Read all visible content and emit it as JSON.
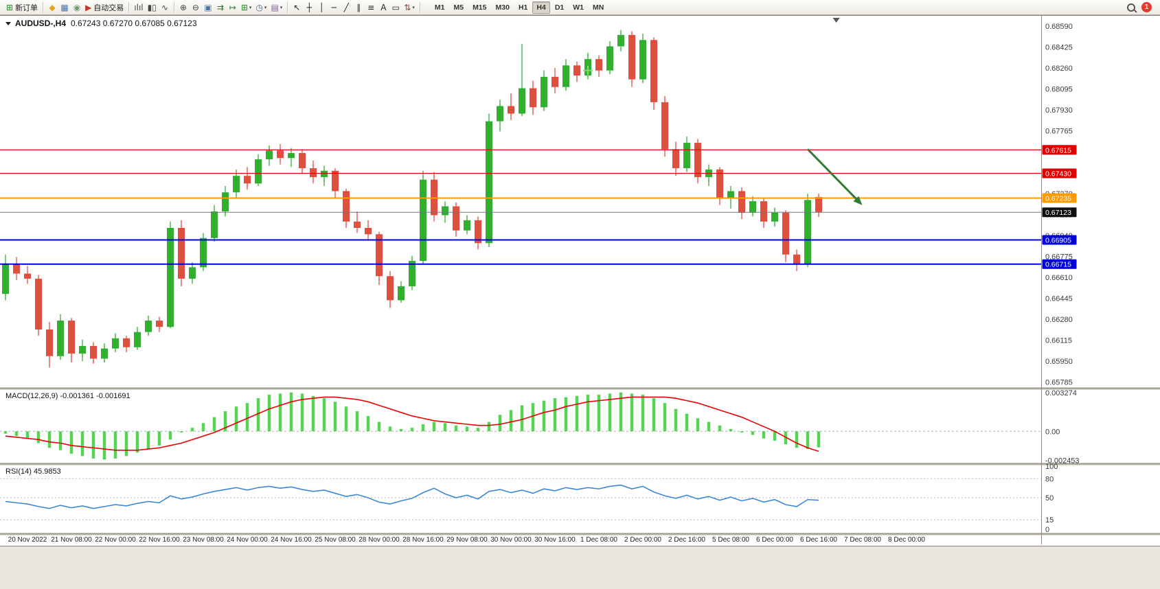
{
  "toolbar": {
    "items": [
      {
        "type": "button",
        "name": "new-order",
        "glyph": "⊞",
        "color": "#1f8f1f",
        "label": "新订单"
      },
      {
        "type": "separator"
      },
      {
        "type": "button",
        "name": "community",
        "glyph": "◆",
        "color": "#e2a41f"
      },
      {
        "type": "button",
        "name": "charts-window",
        "glyph": "▦",
        "color": "#4a74a8"
      },
      {
        "type": "button",
        "name": "market",
        "glyph": "◉",
        "color": "#6f9a6f"
      },
      {
        "type": "button",
        "name": "auto-trading",
        "glyph": "▶",
        "color": "#c03a2c",
        "label": "自动交易"
      },
      {
        "type": "separator"
      },
      {
        "type": "button",
        "name": "bar-chart",
        "glyph": "ılıl",
        "color": "#444444"
      },
      {
        "type": "button",
        "name": "candlestick-chart",
        "glyph": "▮▯",
        "color": "#444444"
      },
      {
        "type": "button",
        "name": "line-chart",
        "glyph": "∿",
        "color": "#444444"
      },
      {
        "type": "separator"
      },
      {
        "type": "button",
        "name": "zoom-in",
        "glyph": "⊕",
        "color": "#444444"
      },
      {
        "type": "button",
        "name": "zoom-out",
        "glyph": "⊖",
        "color": "#444444"
      },
      {
        "type": "button",
        "name": "tile-windows",
        "glyph": "▣",
        "color": "#4a74a8"
      },
      {
        "type": "button",
        "name": "auto-scroll",
        "glyph": "⇉",
        "color": "#2d6e2d"
      },
      {
        "type": "button",
        "name": "chart-shift",
        "glyph": "↦",
        "color": "#2d6e2d"
      },
      {
        "type": "button",
        "name": "indicators",
        "glyph": "⊞",
        "color": "#1f8f1f",
        "caret": true
      },
      {
        "type": "button",
        "name": "periods",
        "glyph": "◷",
        "color": "#3a6ea5",
        "caret": true
      },
      {
        "type": "button",
        "name": "templates",
        "glyph": "▤",
        "color": "#7a5ea5",
        "caret": true
      },
      {
        "type": "separator"
      },
      {
        "type": "button",
        "name": "cursor",
        "glyph": "↖",
        "color": "#222222"
      },
      {
        "type": "button",
        "name": "crosshair",
        "glyph": "┼",
        "color": "#222222"
      },
      {
        "type": "button",
        "name": "vertical-line",
        "glyph": "│",
        "color": "#222222"
      },
      {
        "type": "button",
        "name": "horizontal-line",
        "glyph": "─",
        "color": "#222222"
      },
      {
        "type": "button",
        "name": "trendline",
        "glyph": "╱",
        "color": "#222222"
      },
      {
        "type": "button",
        "name": "equidistant-channel",
        "glyph": "∥",
        "color": "#222222"
      },
      {
        "type": "button",
        "name": "fibonacci",
        "glyph": "≡",
        "color": "#222222"
      },
      {
        "type": "button",
        "name": "text",
        "glyph": "A",
        "color": "#222222"
      },
      {
        "type": "button",
        "name": "text-label",
        "glyph": "▭",
        "color": "#222222"
      },
      {
        "type": "button",
        "name": "arrows",
        "glyph": "⇅",
        "color": "#a03a3a",
        "caret": true
      },
      {
        "type": "separator"
      }
    ],
    "timeframes": [
      "M1",
      "M5",
      "M15",
      "M30",
      "H1",
      "H4",
      "D1",
      "W1",
      "MN"
    ],
    "active_timeframe": "H4",
    "notification_count": "1"
  },
  "chart": {
    "symbol_period": "AUDUSD-,H4",
    "ohlc_text": "0.67243 0.67270 0.67085 0.67123"
  },
  "chart_data": {
    "type": "candlestick",
    "symbol": "AUDUSD-",
    "timeframe": "H4",
    "current_bar": {
      "open": 0.67243,
      "high": 0.6727,
      "low": 0.67085,
      "close": 0.67123
    },
    "price_axis": {
      "visible_range": [
        0.6574,
        0.6866
      ],
      "ticks": [
        0.6859,
        0.68425,
        0.6826,
        0.68095,
        0.6793,
        0.67765,
        0.676,
        0.67435,
        0.6727,
        0.67105,
        0.6694,
        0.66775,
        0.6661,
        0.66445,
        0.6628,
        0.66115,
        0.6595,
        0.65785
      ]
    },
    "candles": [
      [
        0.6648,
        0.6679,
        0.6643,
        0.6672
      ],
      [
        0.6672,
        0.6677,
        0.6659,
        0.6664
      ],
      [
        0.6664,
        0.667,
        0.6656,
        0.666
      ],
      [
        0.666,
        0.6663,
        0.6615,
        0.662
      ],
      [
        0.662,
        0.6626,
        0.659,
        0.6599
      ],
      [
        0.6599,
        0.6632,
        0.6596,
        0.6627
      ],
      [
        0.6627,
        0.6629,
        0.6594,
        0.6601
      ],
      [
        0.6601,
        0.6612,
        0.6595,
        0.6607
      ],
      [
        0.6607,
        0.661,
        0.6593,
        0.6597
      ],
      [
        0.6597,
        0.6609,
        0.6594,
        0.6605
      ],
      [
        0.6605,
        0.6617,
        0.6602,
        0.6613
      ],
      [
        0.6613,
        0.6615,
        0.6602,
        0.6606
      ],
      [
        0.6606,
        0.6622,
        0.6604,
        0.6618
      ],
      [
        0.6618,
        0.6631,
        0.6615,
        0.6627
      ],
      [
        0.6627,
        0.663,
        0.6618,
        0.6622
      ],
      [
        0.6622,
        0.6705,
        0.6621,
        0.67
      ],
      [
        0.67,
        0.6706,
        0.6654,
        0.666
      ],
      [
        0.666,
        0.6673,
        0.6656,
        0.6669
      ],
      [
        0.6669,
        0.6696,
        0.6666,
        0.6692
      ],
      [
        0.6692,
        0.6718,
        0.6689,
        0.6713
      ],
      [
        0.6713,
        0.6733,
        0.6709,
        0.6728
      ],
      [
        0.6728,
        0.6746,
        0.6724,
        0.6741
      ],
      [
        0.6741,
        0.6748,
        0.673,
        0.6735
      ],
      [
        0.6735,
        0.6758,
        0.6733,
        0.6754
      ],
      [
        0.6754,
        0.6765,
        0.6749,
        0.6761
      ],
      [
        0.6761,
        0.6766,
        0.675,
        0.6755
      ],
      [
        0.6755,
        0.6763,
        0.6748,
        0.6759
      ],
      [
        0.6759,
        0.6762,
        0.6743,
        0.6747
      ],
      [
        0.6747,
        0.6753,
        0.6735,
        0.674
      ],
      [
        0.674,
        0.6749,
        0.6733,
        0.6745
      ],
      [
        0.6745,
        0.6747,
        0.6724,
        0.6729
      ],
      [
        0.6729,
        0.6731,
        0.67,
        0.6705
      ],
      [
        0.6705,
        0.6713,
        0.6696,
        0.67
      ],
      [
        0.67,
        0.6706,
        0.669,
        0.6695
      ],
      [
        0.6695,
        0.6697,
        0.6655,
        0.6662
      ],
      [
        0.6662,
        0.6666,
        0.6637,
        0.6643
      ],
      [
        0.6643,
        0.6658,
        0.6641,
        0.6654
      ],
      [
        0.6654,
        0.6678,
        0.6651,
        0.6674
      ],
      [
        0.6674,
        0.6745,
        0.6671,
        0.6738
      ],
      [
        0.6738,
        0.6744,
        0.6705,
        0.671
      ],
      [
        0.671,
        0.6721,
        0.6704,
        0.6717
      ],
      [
        0.6717,
        0.672,
        0.6693,
        0.6698
      ],
      [
        0.6698,
        0.671,
        0.6695,
        0.6706
      ],
      [
        0.6706,
        0.6709,
        0.6683,
        0.6688
      ],
      [
        0.6688,
        0.679,
        0.6685,
        0.6784
      ],
      [
        0.6784,
        0.6801,
        0.6776,
        0.6796
      ],
      [
        0.6796,
        0.6806,
        0.6785,
        0.679
      ],
      [
        0.679,
        0.6845,
        0.6788,
        0.681
      ],
      [
        0.681,
        0.6816,
        0.6789,
        0.6795
      ],
      [
        0.6795,
        0.6824,
        0.6792,
        0.6819
      ],
      [
        0.6819,
        0.6826,
        0.6806,
        0.6811
      ],
      [
        0.6811,
        0.6833,
        0.6808,
        0.6828
      ],
      [
        0.6828,
        0.6831,
        0.6815,
        0.682
      ],
      [
        0.682,
        0.6838,
        0.6817,
        0.6833
      ],
      [
        0.6833,
        0.6836,
        0.6819,
        0.6824
      ],
      [
        0.6824,
        0.6847,
        0.6821,
        0.6843
      ],
      [
        0.6843,
        0.6856,
        0.6839,
        0.6852
      ],
      [
        0.6852,
        0.6855,
        0.6811,
        0.6817
      ],
      [
        0.6817,
        0.6853,
        0.6814,
        0.6848
      ],
      [
        0.6848,
        0.685,
        0.6793,
        0.6799
      ],
      [
        0.6799,
        0.6804,
        0.6756,
        0.6762
      ],
      [
        0.6762,
        0.6768,
        0.6741,
        0.6747
      ],
      [
        0.6747,
        0.6772,
        0.6744,
        0.6767
      ],
      [
        0.6767,
        0.677,
        0.6735,
        0.674
      ],
      [
        0.674,
        0.675,
        0.6733,
        0.6746
      ],
      [
        0.6746,
        0.6748,
        0.6718,
        0.6723
      ],
      [
        0.6723,
        0.6733,
        0.6715,
        0.6729
      ],
      [
        0.6729,
        0.6732,
        0.6707,
        0.6712
      ],
      [
        0.6712,
        0.6725,
        0.6709,
        0.6721
      ],
      [
        0.6721,
        0.6724,
        0.67,
        0.6705
      ],
      [
        0.6705,
        0.6716,
        0.6701,
        0.6712
      ],
      [
        0.6712,
        0.6714,
        0.6673,
        0.6679
      ],
      [
        0.6679,
        0.6683,
        0.6666,
        0.6671
      ],
      [
        0.6671,
        0.6727,
        0.6669,
        0.6722
      ],
      [
        0.67243,
        0.6727,
        0.67085,
        0.67123
      ]
    ],
    "hlines": [
      {
        "price": 0.67615,
        "label": "0.67615",
        "color": "#e00000",
        "width": 1.2
      },
      {
        "price": 0.6743,
        "label": "0.67430",
        "color": "#e00000",
        "width": 1.2
      },
      {
        "price": 0.67235,
        "label": "0.67235",
        "color": "#ff9900",
        "width": 2
      },
      {
        "price": 0.66905,
        "label": "0.66905",
        "color": "#0000d8",
        "width": 2
      },
      {
        "price": 0.66715,
        "label": "0.66715",
        "color": "#0000d8",
        "width": 2
      }
    ],
    "current_price": {
      "value": 0.67123,
      "label": "0.67123",
      "line_color": "#777777",
      "badge_color": "#111111"
    },
    "annotations": {
      "arrow": {
        "from": {
          "bar": 73,
          "price": 0.6762
        },
        "to": {
          "bar": 77.4,
          "price": 0.6723
        }
      },
      "cross": {
        "bar": 53,
        "price": 0.6824
      },
      "shift_marker_bar": 75.6
    },
    "indicators": {
      "macd": {
        "header": "MACD(12,26,9) -0.001361 -0.001691",
        "params": "12,26,9",
        "value_main": "-0.001361",
        "value_signal": "-0.001691",
        "axis_ticks": [
          {
            "v": 0.003274,
            "label": "0.003274"
          },
          {
            "v": 0,
            "label": "0.00"
          },
          {
            "v": -0.002453,
            "label": "-0.002453"
          }
        ],
        "hist": [
          -0.0002,
          -0.0004,
          -0.0006,
          -0.001,
          -0.0014,
          -0.0016,
          -0.0019,
          -0.0021,
          -0.0023,
          -0.0024,
          -0.0023,
          -0.0021,
          -0.0018,
          -0.0015,
          -0.0012,
          -0.0007,
          -0.0001,
          0.0003,
          0.0007,
          0.0012,
          0.0017,
          0.0021,
          0.0024,
          0.0028,
          0.0031,
          0.0032,
          0.0033,
          0.0032,
          0.003,
          0.0028,
          0.0025,
          0.0021,
          0.0017,
          0.0013,
          0.0008,
          0.0004,
          0.0002,
          0.0003,
          0.0006,
          0.0008,
          0.0007,
          0.0005,
          0.0004,
          0.0003,
          0.0008,
          0.0014,
          0.0018,
          0.0022,
          0.0024,
          0.0026,
          0.0028,
          0.0029,
          0.003,
          0.0031,
          0.0031,
          0.0032,
          0.0033,
          0.0032,
          0.0031,
          0.0028,
          0.0024,
          0.0019,
          0.0015,
          0.0011,
          0.0008,
          0.0005,
          0.0002,
          -0.0001,
          -0.0003,
          -0.0006,
          -0.0008,
          -0.0011,
          -0.0014,
          -0.0015,
          -0.001361
        ],
        "signal": [
          -0.0004,
          -0.0005,
          -0.0006,
          -0.0007,
          -0.0009,
          -0.001,
          -0.0012,
          -0.0013,
          -0.0014,
          -0.0015,
          -0.0016,
          -0.0016,
          -0.0016,
          -0.0015,
          -0.0014,
          -0.0012,
          -0.001,
          -0.0007,
          -0.0004,
          -0.0001,
          0.0003,
          0.0007,
          0.0011,
          0.0015,
          0.0019,
          0.0022,
          0.0025,
          0.0027,
          0.0028,
          0.0029,
          0.0029,
          0.0028,
          0.0027,
          0.0025,
          0.0022,
          0.0019,
          0.0016,
          0.0013,
          0.0011,
          0.0009,
          0.0008,
          0.0007,
          0.0006,
          0.0005,
          0.0005,
          0.0006,
          0.0008,
          0.001,
          0.0013,
          0.0016,
          0.0018,
          0.0021,
          0.0023,
          0.0025,
          0.0026,
          0.0027,
          0.0028,
          0.0029,
          0.0029,
          0.0029,
          0.0029,
          0.0028,
          0.0026,
          0.0024,
          0.0021,
          0.0018,
          0.0015,
          0.0012,
          0.0008,
          0.0004,
          0.0,
          -0.0005,
          -0.001,
          -0.0014,
          -0.001691
        ]
      },
      "rsi": {
        "header": "RSI(14) 45.9853",
        "period": 14,
        "value": 45.9853,
        "levels": [
          80,
          50,
          15
        ],
        "axis_ticks": [
          {
            "v": 100,
            "label": "100"
          },
          {
            "v": 80,
            "label": "80"
          },
          {
            "v": 50,
            "label": "50"
          },
          {
            "v": 15,
            "label": "15"
          },
          {
            "v": 0,
            "label": "0"
          }
        ],
        "values": [
          44,
          42,
          40,
          36,
          33,
          38,
          34,
          37,
          33,
          36,
          39,
          37,
          41,
          44,
          42,
          53,
          48,
          51,
          56,
          60,
          63,
          66,
          62,
          66,
          68,
          65,
          67,
          63,
          60,
          62,
          57,
          52,
          55,
          50,
          43,
          40,
          45,
          49,
          58,
          65,
          56,
          50,
          54,
          48,
          60,
          63,
          58,
          62,
          57,
          64,
          61,
          66,
          63,
          66,
          64,
          68,
          70,
          64,
          68,
          59,
          53,
          49,
          54,
          48,
          52,
          46,
          51,
          45,
          49,
          43,
          47,
          39,
          36,
          47,
          45.9853
        ]
      }
    },
    "time_labels": [
      "20 Nov 2022",
      "21 Nov 08:00",
      "22 Nov 00:00",
      "22 Nov 16:00",
      "23 Nov 08:00",
      "24 Nov 00:00",
      "24 Nov 16:00",
      "25 Nov 08:00",
      "28 Nov 00:00",
      "28 Nov 16:00",
      "29 Nov 08:00",
      "30 Nov 00:00",
      "30 Nov 16:00",
      "1 Dec 08:00",
      "2 Dec 00:00",
      "2 Dec 16:00",
      "5 Dec 08:00",
      "6 Dec 00:00",
      "6 Dec 16:00",
      "7 Dec 08:00",
      "8 Dec 00:00"
    ],
    "colors": {
      "up": "#30ae30",
      "down": "#df4f3f",
      "macd_hist": "#55d455",
      "macd_signal": "#e80000",
      "rsi": "#3c86d8",
      "arrow": "#2e7d32",
      "cross": "#7fde6e",
      "axis_text": "#3a3a3a"
    }
  }
}
